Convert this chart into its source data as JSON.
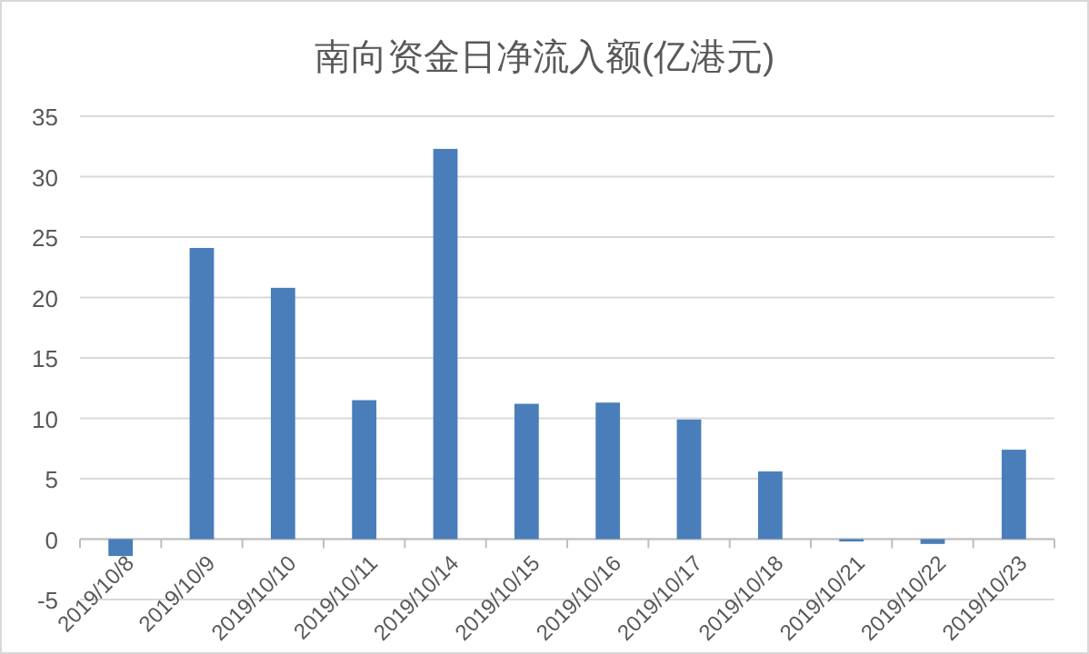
{
  "chart_data": {
    "type": "bar",
    "title": "南向资金日净流入额(亿港元)",
    "categories": [
      "2019/10/8",
      "2019/10/9",
      "2019/10/10",
      "2019/10/11",
      "2019/10/14",
      "2019/10/15",
      "2019/10/16",
      "2019/10/17",
      "2019/10/18",
      "2019/10/21",
      "2019/10/22",
      "2019/10/23"
    ],
    "values": [
      -1.4,
      24.1,
      20.8,
      11.5,
      32.3,
      11.2,
      11.3,
      9.9,
      5.6,
      -0.2,
      -0.4,
      7.4
    ],
    "color": "#4a7ebb",
    "ylim": [
      -5,
      35
    ],
    "yticks": [
      -5,
      0,
      5,
      10,
      15,
      20,
      25,
      30,
      35
    ],
    "grid": "y"
  }
}
